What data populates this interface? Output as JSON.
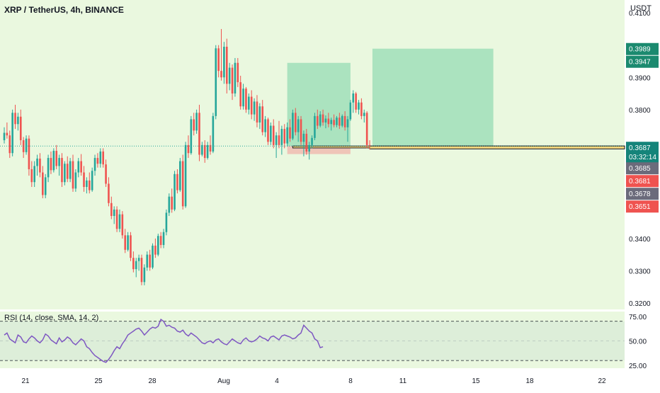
{
  "header": {
    "symbol_title": "XRP / TetherUS, 4h, BINANCE",
    "currency": "USDT"
  },
  "rsi": {
    "title": "RSI (14, close, SMA, 14, 2)",
    "levels": [
      "75.00",
      "50.00",
      "25.00"
    ]
  },
  "colors": {
    "background": "#eaf8df",
    "up_candle": "#26a69a",
    "down_candle": "#ef5350",
    "rsi_line": "#7e57c2",
    "profit_zone": "#5fc99a",
    "loss_zone": "#f2a39e",
    "highlight_box": "#f7d67d"
  },
  "chart_data": {
    "type": "candlestick",
    "yticks": [
      "0.4100",
      "0.3900",
      "0.3800",
      "0.3400",
      "0.3300",
      "0.3200"
    ],
    "xticks": [
      "21",
      "25",
      "28",
      "Aug",
      "4",
      "8",
      "11",
      "15",
      "18",
      "22"
    ],
    "price_labels": [
      {
        "value": "0.3989",
        "color": "#1b8a6f"
      },
      {
        "value": "0.3947",
        "color": "#1b8a6f"
      },
      {
        "value": "0.3687",
        "color": "#15847a"
      },
      {
        "value": "03:32:14",
        "color": "#15847a"
      },
      {
        "value": "0.3685",
        "color": "#6b6b7b"
      },
      {
        "value": "0.3681",
        "color": "#ef5350"
      },
      {
        "value": "0.3678",
        "color": "#6b6b7b"
      },
      {
        "value": "0.3651",
        "color": "#ef5350"
      }
    ],
    "ylim": [
      0.318,
      0.414
    ],
    "candles": [
      [
        0.3705,
        0.3745,
        0.3695,
        0.3728
      ],
      [
        0.3728,
        0.376,
        0.371,
        0.372
      ],
      [
        0.372,
        0.3735,
        0.365,
        0.3665
      ],
      [
        0.3665,
        0.38,
        0.3655,
        0.379
      ],
      [
        0.379,
        0.3815,
        0.374,
        0.3755
      ],
      [
        0.3755,
        0.379,
        0.3735,
        0.3778
      ],
      [
        0.3778,
        0.38,
        0.369,
        0.3705
      ],
      [
        0.3705,
        0.3715,
        0.365,
        0.3668
      ],
      [
        0.3668,
        0.372,
        0.366,
        0.371
      ],
      [
        0.371,
        0.372,
        0.3595,
        0.3615
      ],
      [
        0.3615,
        0.364,
        0.356,
        0.3575
      ],
      [
        0.3575,
        0.364,
        0.356,
        0.3625
      ],
      [
        0.3625,
        0.366,
        0.3595,
        0.3648
      ],
      [
        0.3648,
        0.3665,
        0.359,
        0.3605
      ],
      [
        0.3605,
        0.3625,
        0.3525,
        0.3535
      ],
      [
        0.3535,
        0.36,
        0.3525,
        0.359
      ],
      [
        0.359,
        0.366,
        0.3575,
        0.365
      ],
      [
        0.365,
        0.367,
        0.36,
        0.3612
      ],
      [
        0.3612,
        0.368,
        0.3605,
        0.3672
      ],
      [
        0.3672,
        0.369,
        0.3615,
        0.3625
      ],
      [
        0.3625,
        0.366,
        0.3595,
        0.365
      ],
      [
        0.365,
        0.3665,
        0.356,
        0.3575
      ],
      [
        0.3575,
        0.364,
        0.3565,
        0.3632
      ],
      [
        0.3632,
        0.3655,
        0.3575,
        0.3585
      ],
      [
        0.3585,
        0.365,
        0.3575,
        0.364
      ],
      [
        0.364,
        0.366,
        0.3545,
        0.3555
      ],
      [
        0.3555,
        0.3615,
        0.3545,
        0.3605
      ],
      [
        0.3605,
        0.365,
        0.359,
        0.364
      ],
      [
        0.364,
        0.3662,
        0.3595,
        0.3605
      ],
      [
        0.3605,
        0.3625,
        0.3545,
        0.356
      ],
      [
        0.356,
        0.359,
        0.354,
        0.358
      ],
      [
        0.358,
        0.3605,
        0.354,
        0.355
      ],
      [
        0.355,
        0.362,
        0.3545,
        0.361
      ],
      [
        0.361,
        0.366,
        0.3595,
        0.365
      ],
      [
        0.365,
        0.3665,
        0.362,
        0.3632
      ],
      [
        0.3632,
        0.368,
        0.362,
        0.367
      ],
      [
        0.367,
        0.368,
        0.362,
        0.363
      ],
      [
        0.363,
        0.3645,
        0.356,
        0.357
      ],
      [
        0.357,
        0.359,
        0.35,
        0.351
      ],
      [
        0.351,
        0.353,
        0.346,
        0.347
      ],
      [
        0.347,
        0.35,
        0.3445,
        0.349
      ],
      [
        0.349,
        0.35,
        0.342,
        0.343
      ],
      [
        0.343,
        0.349,
        0.342,
        0.3475
      ],
      [
        0.3475,
        0.3485,
        0.34,
        0.341
      ],
      [
        0.341,
        0.343,
        0.3355,
        0.3365
      ],
      [
        0.3365,
        0.342,
        0.336,
        0.341
      ],
      [
        0.341,
        0.342,
        0.333,
        0.334
      ],
      [
        0.334,
        0.336,
        0.3295,
        0.3305
      ],
      [
        0.3305,
        0.334,
        0.328,
        0.333
      ],
      [
        0.333,
        0.335,
        0.33,
        0.334
      ],
      [
        0.334,
        0.335,
        0.3255,
        0.3265
      ],
      [
        0.3265,
        0.332,
        0.3255,
        0.331
      ],
      [
        0.331,
        0.336,
        0.33,
        0.335
      ],
      [
        0.335,
        0.3365,
        0.33,
        0.331
      ],
      [
        0.331,
        0.3385,
        0.3305,
        0.3378
      ],
      [
        0.3378,
        0.34,
        0.334,
        0.335
      ],
      [
        0.335,
        0.3415,
        0.3345,
        0.3408
      ],
      [
        0.3408,
        0.342,
        0.337,
        0.338
      ],
      [
        0.338,
        0.343,
        0.337,
        0.342
      ],
      [
        0.342,
        0.349,
        0.341,
        0.348
      ],
      [
        0.348,
        0.354,
        0.347,
        0.353
      ],
      [
        0.353,
        0.3555,
        0.348,
        0.349
      ],
      [
        0.349,
        0.361,
        0.3485,
        0.36
      ],
      [
        0.36,
        0.3615,
        0.354,
        0.355
      ],
      [
        0.355,
        0.365,
        0.3545,
        0.364
      ],
      [
        0.364,
        0.366,
        0.349,
        0.35
      ],
      [
        0.35,
        0.37,
        0.3495,
        0.369
      ],
      [
        0.369,
        0.372,
        0.365,
        0.3665
      ],
      [
        0.3665,
        0.378,
        0.366,
        0.377
      ],
      [
        0.377,
        0.379,
        0.372,
        0.3735
      ],
      [
        0.3735,
        0.38,
        0.3725,
        0.379
      ],
      [
        0.379,
        0.3815,
        0.364,
        0.366
      ],
      [
        0.366,
        0.37,
        0.3655,
        0.369
      ],
      [
        0.369,
        0.3705,
        0.3635,
        0.365
      ],
      [
        0.365,
        0.37,
        0.3645,
        0.369
      ],
      [
        0.369,
        0.372,
        0.366,
        0.367
      ],
      [
        0.367,
        0.379,
        0.3665,
        0.378
      ],
      [
        0.378,
        0.4,
        0.377,
        0.399
      ],
      [
        0.399,
        0.4,
        0.39,
        0.392
      ],
      [
        0.392,
        0.405,
        0.389,
        0.39
      ],
      [
        0.39,
        0.401,
        0.388,
        0.3995
      ],
      [
        0.3995,
        0.402,
        0.385,
        0.388
      ],
      [
        0.388,
        0.3945,
        0.386,
        0.393
      ],
      [
        0.393,
        0.394,
        0.383,
        0.385
      ],
      [
        0.385,
        0.396,
        0.384,
        0.3945
      ],
      [
        0.3945,
        0.396,
        0.387,
        0.3885
      ],
      [
        0.3885,
        0.3905,
        0.38,
        0.381
      ],
      [
        0.381,
        0.388,
        0.38,
        0.3865
      ],
      [
        0.3865,
        0.387,
        0.379,
        0.38
      ],
      [
        0.38,
        0.385,
        0.3785,
        0.384
      ],
      [
        0.384,
        0.386,
        0.377,
        0.3785
      ],
      [
        0.3785,
        0.3835,
        0.3765,
        0.3825
      ],
      [
        0.3825,
        0.3845,
        0.3745,
        0.376
      ],
      [
        0.376,
        0.382,
        0.374,
        0.381
      ],
      [
        0.381,
        0.383,
        0.372,
        0.373
      ],
      [
        0.373,
        0.378,
        0.3715,
        0.377
      ],
      [
        0.377,
        0.3775,
        0.369,
        0.37
      ],
      [
        0.37,
        0.376,
        0.369,
        0.375
      ],
      [
        0.375,
        0.377,
        0.368,
        0.369
      ],
      [
        0.369,
        0.373,
        0.365,
        0.372
      ],
      [
        0.372,
        0.3765,
        0.368,
        0.369
      ],
      [
        0.369,
        0.375,
        0.366,
        0.374
      ],
      [
        0.374,
        0.3755,
        0.368,
        0.3695
      ],
      [
        0.3695,
        0.376,
        0.3685,
        0.3745
      ],
      [
        0.3745,
        0.377,
        0.37,
        0.371
      ],
      [
        0.371,
        0.38,
        0.3705,
        0.379
      ],
      [
        0.379,
        0.3805,
        0.372,
        0.373
      ],
      [
        0.373,
        0.378,
        0.37,
        0.377
      ],
      [
        0.377,
        0.378,
        0.369,
        0.37
      ],
      [
        0.37,
        0.3735,
        0.3655,
        0.3725
      ],
      [
        0.3725,
        0.374,
        0.366,
        0.367
      ],
      [
        0.367,
        0.37,
        0.3645,
        0.369
      ],
      [
        0.369,
        0.372,
        0.368,
        0.3712
      ],
      [
        0.3712,
        0.379,
        0.3705,
        0.378
      ],
      [
        0.378,
        0.38,
        0.374,
        0.375
      ],
      [
        0.375,
        0.3795,
        0.3745,
        0.3785
      ],
      [
        0.3785,
        0.38,
        0.375,
        0.376
      ],
      [
        0.376,
        0.3782,
        0.3742,
        0.3772
      ],
      [
        0.3772,
        0.379,
        0.3745,
        0.3755
      ],
      [
        0.3755,
        0.3775,
        0.3735,
        0.3768
      ],
      [
        0.3768,
        0.3785,
        0.3745,
        0.3752
      ],
      [
        0.3752,
        0.378,
        0.3745,
        0.3775
      ],
      [
        0.3775,
        0.379,
        0.374,
        0.375
      ],
      [
        0.375,
        0.3785,
        0.3745,
        0.378
      ],
      [
        0.378,
        0.3795,
        0.3735,
        0.3745
      ],
      [
        0.3745,
        0.378,
        0.37,
        0.377
      ],
      [
        0.377,
        0.383,
        0.3765,
        0.3822
      ],
      [
        0.3822,
        0.386,
        0.379,
        0.385
      ],
      [
        0.385,
        0.3855,
        0.379,
        0.38
      ],
      [
        0.38,
        0.383,
        0.3785,
        0.3822
      ],
      [
        0.3822,
        0.3835,
        0.377,
        0.378
      ],
      [
        0.378,
        0.38,
        0.376,
        0.379
      ],
      [
        0.379,
        0.3795,
        0.368,
        0.369
      ],
      [
        0.369,
        0.3705,
        0.3676,
        0.3687
      ]
    ],
    "rsi_values": [
      56,
      58,
      52,
      50,
      48,
      56,
      54,
      49,
      48,
      52,
      55,
      53,
      50,
      48,
      51,
      57,
      55,
      51,
      49,
      47,
      53,
      49,
      51,
      54,
      52,
      48,
      46,
      49,
      52,
      50,
      44,
      42,
      38,
      35,
      33,
      31,
      29,
      28,
      31,
      35,
      40,
      44,
      42,
      47,
      51,
      56,
      58,
      60,
      62,
      63,
      60,
      56,
      59,
      62,
      64,
      63,
      65,
      72,
      70,
      65,
      66,
      64,
      63,
      60,
      59,
      61,
      57,
      55,
      58,
      56,
      54,
      51,
      48,
      47,
      49,
      50,
      48,
      51,
      52,
      49,
      47,
      46,
      49,
      52,
      50,
      48,
      47,
      51,
      53,
      50,
      49,
      50,
      52,
      55,
      53,
      52,
      50,
      54,
      55,
      53,
      51,
      55,
      56,
      55,
      54,
      52,
      53,
      56,
      58,
      66,
      63,
      60,
      58,
      52,
      50,
      43,
      44
    ],
    "rsi_ylim": [
      22,
      80
    ]
  }
}
